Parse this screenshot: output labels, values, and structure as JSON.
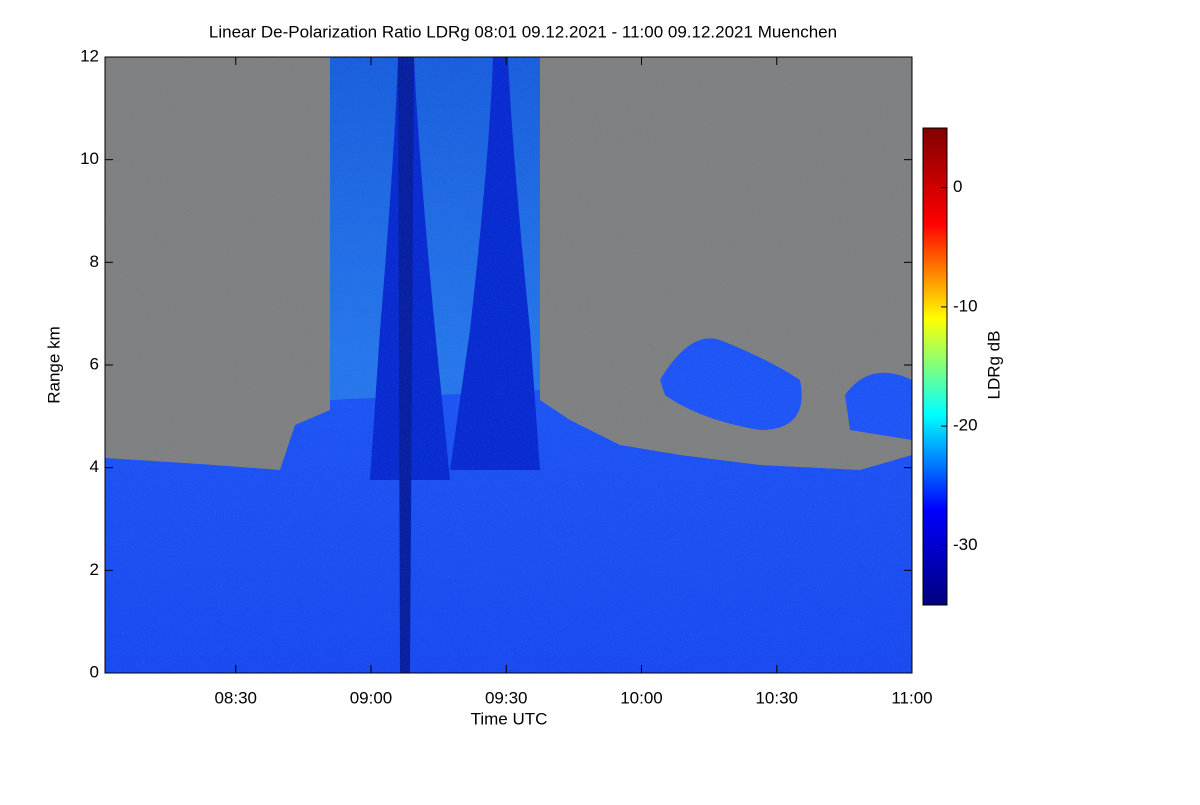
{
  "chart_data": {
    "type": "heatmap",
    "title": "Linear De-Polarization Ratio LDRg   08:01 09.12.2021 - 11:00 09.12.2021 Muenchen",
    "xlabel": "Time UTC",
    "ylabel": "Range km",
    "colorbar_label": "LDRg dB",
    "xlim": [
      481,
      660
    ],
    "xticks": [
      {
        "value": 510,
        "label": "08:30"
      },
      {
        "value": 540,
        "label": "09:00"
      },
      {
        "value": 570,
        "label": "09:30"
      },
      {
        "value": 600,
        "label": "10:00"
      },
      {
        "value": 630,
        "label": "10:30"
      },
      {
        "value": 660,
        "label": "11:00"
      }
    ],
    "ylim": [
      0,
      12
    ],
    "yticks": [
      0,
      2,
      4,
      6,
      8,
      10,
      12
    ],
    "zlim": [
      -35,
      5
    ],
    "zticks": [
      0,
      -10,
      -20,
      -30
    ],
    "colormap": [
      "#00007f",
      "#0000ff",
      "#00ffff",
      "#ffff00",
      "#ff0000",
      "#7f0000"
    ],
    "missing_color": "#808080"
  }
}
